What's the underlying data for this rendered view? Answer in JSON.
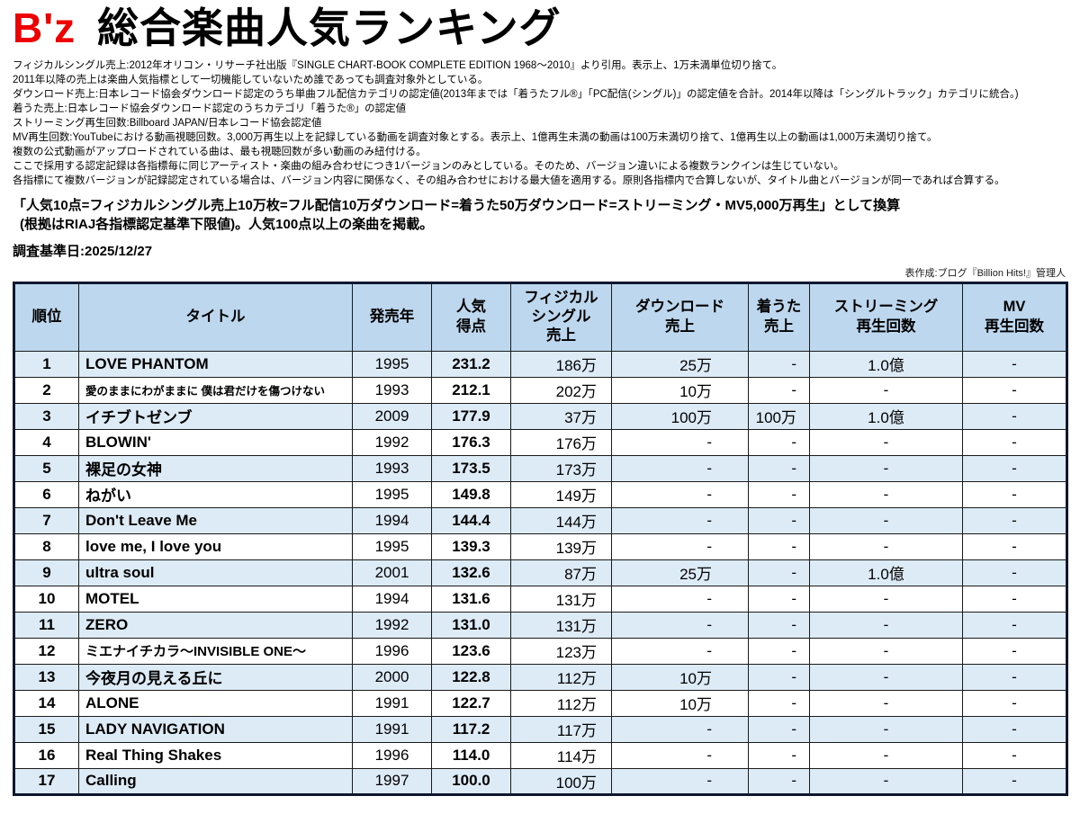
{
  "colors": {
    "accent_red": "#EE0000",
    "header_bg": "#BDD7EE",
    "row_alt_bg": "#DDEBF7",
    "table_border": "#10172E"
  },
  "header": {
    "artist": "B'z",
    "title": "総合楽曲人気ランキング",
    "notes": [
      "フィジカルシングル売上:2012年オリコン・リサーチ社出版『SINGLE CHART-BOOK COMPLETE EDITION 1968〜2010』より引用。表示上、1万未満単位切り捨て。",
      "2011年以降の売上は楽曲人気指標として一切機能していないため誰であっても調査対象外としている。",
      "ダウンロード売上:日本レコード協会ダウンロード認定のうち単曲フル配信カテゴリの認定値(2013年までは「着うたフル®」「PC配信(シングル)」の認定値を合計。2014年以降は「シングルトラック」カテゴリに統合。)",
      "着うた売上:日本レコード協会ダウンロード認定のうちカテゴリ「着うた®」の認定値",
      "ストリーミング再生回数:Billboard JAPAN/日本レコード協会認定値",
      "MV再生回数:YouTubeにおける動画視聴回数。3,000万再生以上を記録している動画を調査対象とする。表示上、1億再生未満の動画は100万未満切り捨て、1億再生以上の動画は1,000万未満切り捨て。",
      "複数の公式動画がアップロードされている曲は、最も視聴回数が多い動画のみ紐付ける。",
      "ここで採用する認定記録は各指標毎に同じアーティスト・楽曲の組み合わせにつき1バージョンのみとしている。そのため、バージョン違いによる複数ランクインは生じていない。",
      "各指標にて複数バージョンが記録認定されている場合は、バージョン内容に関係なく、その組み合わせにおける最大値を適用する。原則各指標内で合算しないが、タイトル曲とバージョンが同一であれば合算する。"
    ],
    "conversion_line1": "「人気10点=フィジカルシングル売上10万枚=フル配信10万ダウンロード=着うた50万ダウンロード=ストリーミング・MV5,000万再生」として換算",
    "conversion_line2": "(根拠はRIAJ各指標認定基準下限値)。人気100点以上の楽曲を掲載。",
    "survey_date": "調査基準日:2025/12/27",
    "credit": "表作成:ブログ『Billion Hits!』管理人"
  },
  "table": {
    "columns": [
      {
        "key": "rank",
        "lines": [
          "順位"
        ]
      },
      {
        "key": "title",
        "lines": [
          "タイトル"
        ]
      },
      {
        "key": "year",
        "lines": [
          "発売年"
        ]
      },
      {
        "key": "score",
        "lines": [
          "人気",
          "得点"
        ]
      },
      {
        "key": "physical",
        "lines": [
          "フィジカル",
          "シングル",
          "売上"
        ]
      },
      {
        "key": "download",
        "lines": [
          "ダウンロード",
          "売上"
        ]
      },
      {
        "key": "chakuuta",
        "lines": [
          "着うた",
          "売上"
        ]
      },
      {
        "key": "streaming",
        "lines": [
          "ストリーミング",
          "再生回数"
        ]
      },
      {
        "key": "mv",
        "lines": [
          "MV",
          "再生回数"
        ]
      }
    ],
    "rows": [
      {
        "rank": "1",
        "title": "LOVE PHANTOM",
        "year": "1995",
        "score": "231.2",
        "physical": "186万",
        "download": "25万",
        "chakuuta": "-",
        "streaming": "1.0億",
        "mv": "-"
      },
      {
        "rank": "2",
        "title": "愛のままにわがままに 僕は君だけを傷つけない",
        "year": "1993",
        "score": "212.1",
        "physical": "202万",
        "download": "10万",
        "chakuuta": "-",
        "streaming": "-",
        "mv": "-"
      },
      {
        "rank": "3",
        "title": "イチブトゼンブ",
        "year": "2009",
        "score": "177.9",
        "physical": "37万",
        "download": "100万",
        "chakuuta": "100万",
        "streaming": "1.0億",
        "mv": "-"
      },
      {
        "rank": "4",
        "title": "BLOWIN'",
        "year": "1992",
        "score": "176.3",
        "physical": "176万",
        "download": "-",
        "chakuuta": "-",
        "streaming": "-",
        "mv": "-"
      },
      {
        "rank": "5",
        "title": "裸足の女神",
        "year": "1993",
        "score": "173.5",
        "physical": "173万",
        "download": "-",
        "chakuuta": "-",
        "streaming": "-",
        "mv": "-"
      },
      {
        "rank": "6",
        "title": "ねがい",
        "year": "1995",
        "score": "149.8",
        "physical": "149万",
        "download": "-",
        "chakuuta": "-",
        "streaming": "-",
        "mv": "-"
      },
      {
        "rank": "7",
        "title": "Don't Leave Me",
        "year": "1994",
        "score": "144.4",
        "physical": "144万",
        "download": "-",
        "chakuuta": "-",
        "streaming": "-",
        "mv": "-"
      },
      {
        "rank": "8",
        "title": "love me, I love you",
        "year": "1995",
        "score": "139.3",
        "physical": "139万",
        "download": "-",
        "chakuuta": "-",
        "streaming": "-",
        "mv": "-"
      },
      {
        "rank": "9",
        "title": "ultra soul",
        "year": "2001",
        "score": "132.6",
        "physical": "87万",
        "download": "25万",
        "chakuuta": "-",
        "streaming": "1.0億",
        "mv": "-"
      },
      {
        "rank": "10",
        "title": "MOTEL",
        "year": "1994",
        "score": "131.6",
        "physical": "131万",
        "download": "-",
        "chakuuta": "-",
        "streaming": "-",
        "mv": "-"
      },
      {
        "rank": "11",
        "title": "ZERO",
        "year": "1992",
        "score": "131.0",
        "physical": "131万",
        "download": "-",
        "chakuuta": "-",
        "streaming": "-",
        "mv": "-"
      },
      {
        "rank": "12",
        "title": "ミエナイチカラ〜INVISIBLE ONE〜",
        "year": "1996",
        "score": "123.6",
        "physical": "123万",
        "download": "-",
        "chakuuta": "-",
        "streaming": "-",
        "mv": "-"
      },
      {
        "rank": "13",
        "title": "今夜月の見える丘に",
        "year": "2000",
        "score": "122.8",
        "physical": "112万",
        "download": "10万",
        "chakuuta": "-",
        "streaming": "-",
        "mv": "-"
      },
      {
        "rank": "14",
        "title": "ALONE",
        "year": "1991",
        "score": "122.7",
        "physical": "112万",
        "download": "10万",
        "chakuuta": "-",
        "streaming": "-",
        "mv": "-"
      },
      {
        "rank": "15",
        "title": "LADY NAVIGATION",
        "year": "1991",
        "score": "117.2",
        "physical": "117万",
        "download": "-",
        "chakuuta": "-",
        "streaming": "-",
        "mv": "-"
      },
      {
        "rank": "16",
        "title": "Real Thing Shakes",
        "year": "1996",
        "score": "114.0",
        "physical": "114万",
        "download": "-",
        "chakuuta": "-",
        "streaming": "-",
        "mv": "-"
      },
      {
        "rank": "17",
        "title": "Calling",
        "year": "1997",
        "score": "100.0",
        "physical": "100万",
        "download": "-",
        "chakuuta": "-",
        "streaming": "-",
        "mv": "-"
      }
    ]
  }
}
